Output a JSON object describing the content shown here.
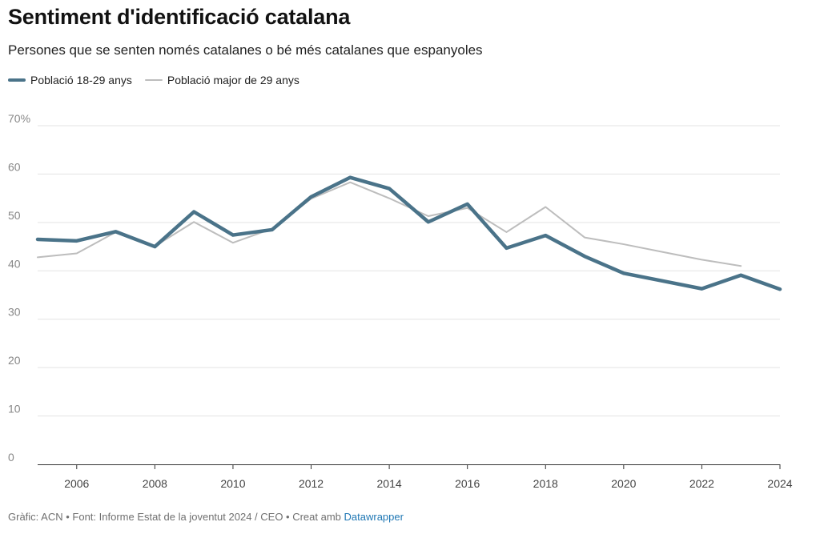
{
  "header": {
    "title": "Sentiment d'identificació catalana",
    "subtitle": "Persones que se senten només catalanes o bé més catalanes que espanyoles"
  },
  "legend": {
    "items": [
      {
        "label": "Població 18-29 anys",
        "color": "#4a7389"
      },
      {
        "label": "Població major de 29 anys",
        "color": "#bdbdbd"
      }
    ]
  },
  "footer": {
    "text": "Gràfic: ACN • Font: Informe Estat de la joventut 2024 / CEO • Creat amb ",
    "link": "Datawrapper"
  },
  "chart_data": {
    "type": "line",
    "title": "Sentiment d'identificació catalana",
    "subtitle": "Persones que se senten només catalanes o bé més catalanes que espanyoles",
    "xlabel": "",
    "ylabel": "",
    "xlim": [
      2005,
      2024
    ],
    "ylim": [
      0,
      70
    ],
    "y_ticks": [
      0,
      10,
      20,
      30,
      40,
      50,
      60,
      70
    ],
    "y_tick_labels": [
      "0",
      "10",
      "20",
      "30",
      "40",
      "50",
      "60",
      "70%"
    ],
    "x_ticks": [
      2006,
      2008,
      2010,
      2012,
      2014,
      2016,
      2018,
      2020,
      2022,
      2024
    ],
    "x_tick_labels": [
      "2006",
      "2008",
      "2010",
      "2012",
      "2014",
      "2016",
      "2018",
      "2020",
      "2022",
      "2024"
    ],
    "grid": "horizontal",
    "legend_position": "top-left",
    "series": [
      {
        "name": "Població 18-29 anys",
        "color": "#4a7389",
        "x": [
          2005,
          2006,
          2007,
          2008,
          2009,
          2010,
          2011,
          2012,
          2013,
          2014,
          2015,
          2016,
          2017,
          2018,
          2019,
          2020,
          2021,
          2022,
          2023,
          2024
        ],
        "values": [
          46.5,
          46.2,
          48.1,
          45.0,
          52.2,
          47.4,
          48.5,
          55.3,
          59.3,
          57.0,
          50.1,
          53.8,
          44.7,
          47.3,
          43.0,
          39.5,
          37.9,
          36.3,
          39.1,
          36.2
        ]
      },
      {
        "name": "Població major de 29 anys",
        "color": "#bdbdbd",
        "x": [
          2005,
          2006,
          2007,
          2008,
          2009,
          2010,
          2011,
          2012,
          2013,
          2014,
          2015,
          2016,
          2017,
          2018,
          2019,
          2020,
          2021,
          2022,
          2023
        ],
        "values": [
          42.8,
          43.6,
          48.0,
          45.1,
          50.1,
          45.8,
          48.7,
          54.9,
          58.3,
          55.0,
          51.3,
          53.0,
          48.0,
          53.2,
          46.9,
          45.5,
          43.9,
          42.3,
          41.0
        ]
      }
    ]
  }
}
